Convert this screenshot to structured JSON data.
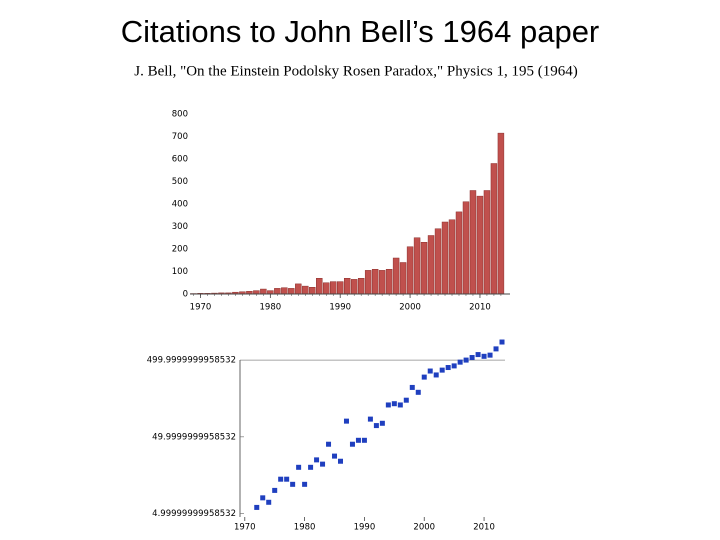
{
  "title": "Citations to John Bell’s 1964 paper",
  "subtitle": "J. Bell, \"On the Einstein Podolsky Rosen Paradox,\" Physics 1, 195 (1964)",
  "chart_data": [
    {
      "type": "bar",
      "color": "#c0504d",
      "x": [
        1969,
        1970,
        1971,
        1972,
        1973,
        1974,
        1975,
        1976,
        1977,
        1978,
        1979,
        1980,
        1981,
        1982,
        1983,
        1984,
        1985,
        1986,
        1987,
        1988,
        1989,
        1990,
        1991,
        1992,
        1993,
        1994,
        1995,
        1996,
        1997,
        1998,
        1999,
        2000,
        2001,
        2002,
        2003,
        2004,
        2005,
        2006,
        2007,
        2008,
        2009,
        2010,
        2011,
        2012,
        2013
      ],
      "values": [
        2,
        3,
        3,
        4,
        5,
        5,
        8,
        10,
        12,
        15,
        22,
        15,
        25,
        28,
        25,
        45,
        35,
        30,
        70,
        50,
        55,
        55,
        70,
        65,
        70,
        105,
        110,
        105,
        110,
        160,
        140,
        210,
        250,
        230,
        260,
        290,
        320,
        330,
        365,
        410,
        460,
        435,
        460,
        580,
        715
      ],
      "xlim": [
        1968.5,
        2014.3
      ],
      "xticks": [
        1970,
        1980,
        1990,
        2000,
        2010
      ],
      "ylim": [
        0,
        800
      ],
      "yticks": [
        0,
        100,
        200,
        300,
        400,
        500,
        600,
        700,
        800
      ]
    },
    {
      "type": "scatter",
      "color": "#1f3fbf",
      "log_y": true,
      "x": [
        1972,
        1973,
        1974,
        1975,
        1976,
        1977,
        1978,
        1979,
        1980,
        1981,
        1982,
        1983,
        1984,
        1985,
        1986,
        1987,
        1988,
        1989,
        1990,
        1991,
        1992,
        1993,
        1994,
        1995,
        1996,
        1997,
        1998,
        1999,
        2000,
        2001,
        2002,
        2003,
        2004,
        2005,
        2006,
        2007,
        2008,
        2009,
        2010,
        2011,
        2012,
        2013
      ],
      "values": [
        6,
        8,
        7,
        10,
        14,
        14,
        12,
        20,
        12,
        20,
        25,
        22,
        40,
        28,
        24,
        80,
        40,
        45,
        45,
        85,
        70,
        75,
        130,
        135,
        130,
        150,
        220,
        190,
        300,
        360,
        320,
        370,
        400,
        420,
        470,
        500,
        540,
        590,
        560,
        580,
        700,
        860
      ],
      "xlim": [
        1969.2,
        2013.5
      ],
      "xticks": [
        1970,
        1980,
        1990,
        2000,
        2010
      ],
      "ylim": [
        4.5,
        1000
      ],
      "yticks": [
        {
          "value": 5,
          "label": "4.99999999958532"
        },
        {
          "value": 50,
          "label": "49.9999999958532"
        },
        {
          "value": 500,
          "label": "499.9999999958532"
        }
      ]
    }
  ]
}
